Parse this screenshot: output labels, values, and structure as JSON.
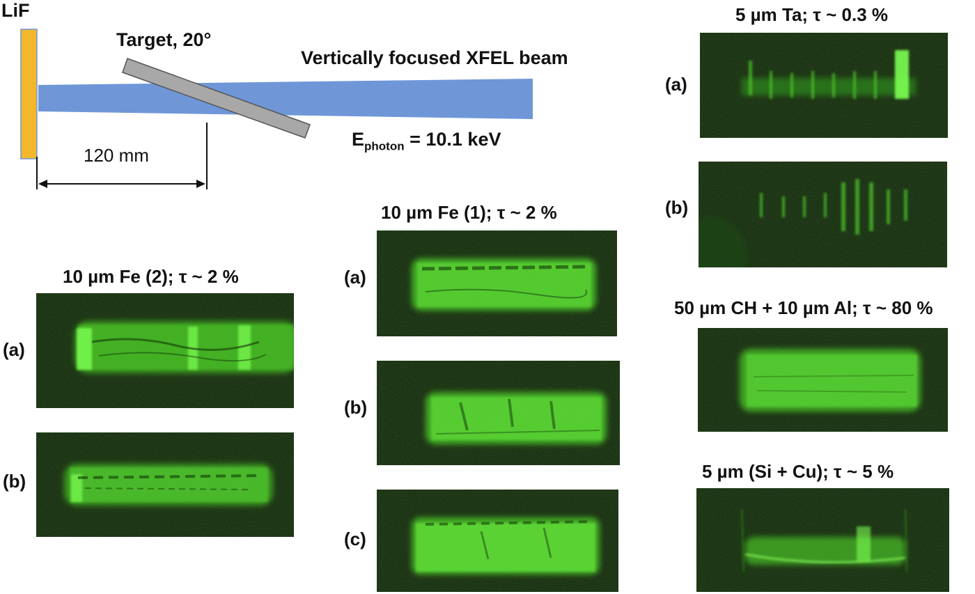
{
  "schematic": {
    "lif_label": "LiF",
    "target_label": "Target,  20°",
    "beam_label": "Vertically focused XFEL beam",
    "energy_main": "E",
    "energy_sub": "photon",
    "energy_value": " = 10.1 keV",
    "distance_label": "120 mm"
  },
  "groups": {
    "fe1": {
      "title": "10 µm Fe (1);   τ ~ 2 %",
      "labels": [
        "(a)",
        "(b)",
        "(c)"
      ]
    },
    "fe2": {
      "title": "10 µm Fe (2);   τ ~ 2 %",
      "labels": [
        "(a)",
        "(b)"
      ]
    },
    "ta": {
      "title": "5 µm Ta;   τ ~ 0.3 %",
      "labels": [
        "(a)",
        "(b)"
      ]
    },
    "chal": {
      "title": "50 µm CH + 10 µm Al;  τ ~ 80 %"
    },
    "sicu": {
      "title": "5 µm (Si + Cu);  τ ~ 5 %"
    }
  },
  "colors": {
    "lif": "#f2b72a",
    "beam": "#6f97d8",
    "target": "#a8a8a8",
    "panel_bg": "#0b1a05",
    "glow": "#5fe03a"
  }
}
